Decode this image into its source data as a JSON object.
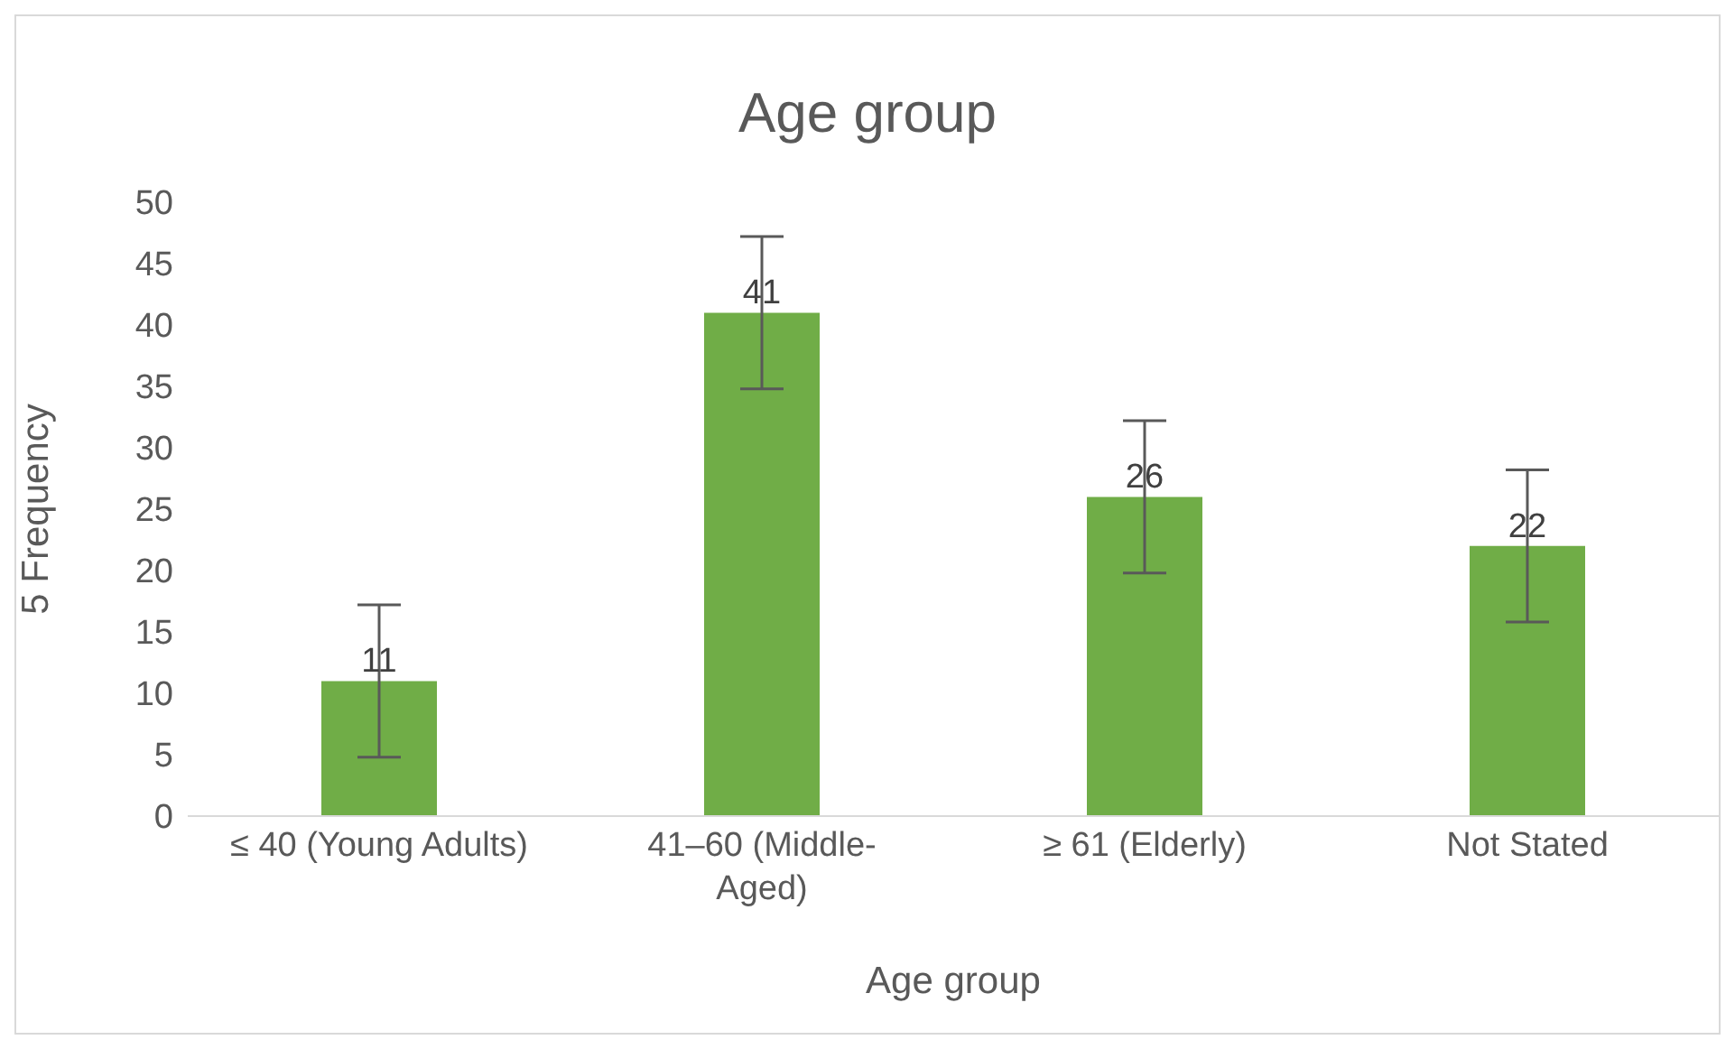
{
  "chart_data": {
    "type": "bar",
    "title": "Age group",
    "xlabel": "Age group",
    "ylabel": "5 Frequency",
    "categories": [
      "≤ 40 (Young Adults)",
      "41–60 (Middle-Aged)",
      "≥ 61 (Elderly)",
      "Not Stated"
    ],
    "values": [
      11,
      41,
      26,
      22
    ],
    "color": "#70ad47",
    "errors": [
      6.2,
      6.2,
      6.2,
      6.2
    ],
    "ylim": [
      0,
      50
    ],
    "yticks": [
      0,
      5,
      10,
      15,
      20,
      25,
      30,
      35,
      40,
      45,
      50
    ],
    "grid": false,
    "data_labels": true
  }
}
